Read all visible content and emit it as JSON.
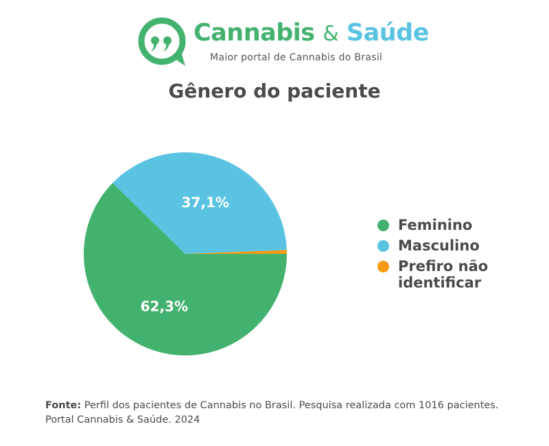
{
  "brand": {
    "name_part1": "Cannabis",
    "name_amp": "&",
    "name_part2": "Saúde",
    "tagline": "Maior portal de Cannabis do Brasil",
    "logo_icon": "speech-bubble-quote-icon",
    "colors": {
      "green": "#44b26f",
      "blue": "#5ac3e2"
    }
  },
  "chart_data": {
    "type": "pie",
    "title": "Gênero do paciente",
    "slices": [
      {
        "label": "Feminino",
        "value": 62.3,
        "display": "62,3%",
        "color": "#44b26f"
      },
      {
        "label": "Masculino",
        "value": 37.1,
        "display": "37,1%",
        "color": "#5ac3e2"
      },
      {
        "label": "Prefiro não identificar",
        "value": 0.6,
        "display": "",
        "color": "#f59a12"
      }
    ],
    "legend_placement": "right"
  },
  "source": {
    "label": "Fonte:",
    "text": "Perfil dos pacientes de Cannabis no Brasil. Pesquisa realizada com 1016 pacientes. Portal Cannabis & Saúde. 2024"
  }
}
